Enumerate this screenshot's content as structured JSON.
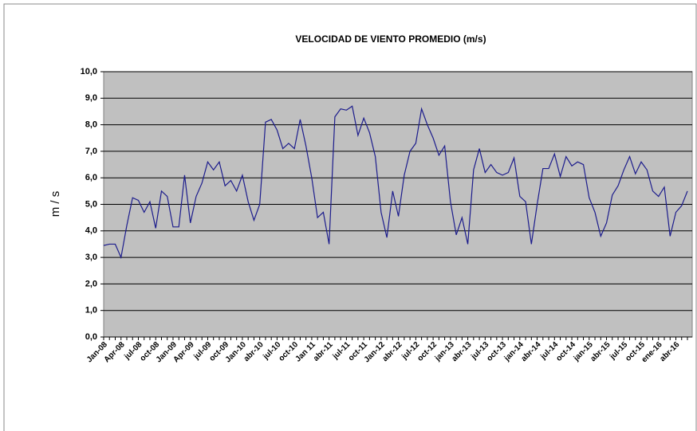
{
  "chart_data": {
    "type": "line",
    "title": "VELOCIDAD  DE VIENTO  PROMEDIO (m/s)",
    "y_label": "m / s",
    "categories": [
      "Jan-08",
      null,
      null,
      "Apr-08",
      null,
      null,
      "jul-08",
      null,
      null,
      "oct-08",
      null,
      null,
      "Jan-09",
      null,
      null,
      "Apr-09",
      null,
      null,
      "jul-09",
      null,
      null,
      "oct-09",
      null,
      null,
      "Jan-10",
      null,
      null,
      "abr-10",
      null,
      null,
      "jul-10",
      null,
      null,
      "oct-10",
      null,
      null,
      "Jan 11",
      null,
      null,
      "abr-11",
      null,
      null,
      "jul-11",
      null,
      null,
      "oct-11",
      null,
      null,
      "Jan-12",
      null,
      null,
      "abr-12",
      null,
      null,
      "jul-12",
      null,
      null,
      "oct-12",
      null,
      null,
      "jan-13",
      null,
      null,
      "abr-13",
      null,
      null,
      "jul-13",
      null,
      null,
      "oct-13",
      null,
      null,
      "jan-14",
      null,
      null,
      "abr-14",
      null,
      null,
      "jul-14",
      null,
      null,
      "oct-14",
      null,
      null,
      "jan-15",
      null,
      null,
      "abr-15",
      null,
      null,
      "jul-15",
      null,
      null,
      "oct-15",
      null,
      null,
      "ene-16",
      null,
      null,
      "abr-16",
      null,
      null
    ],
    "series": [
      {
        "name": "m / s",
        "color": "#1c1c8c",
        "values": [
          3.45,
          3.5,
          3.5,
          3.0,
          4.2,
          5.25,
          5.15,
          4.7,
          5.1,
          4.1,
          5.5,
          5.3,
          4.15,
          4.15,
          6.1,
          4.3,
          5.3,
          5.8,
          6.6,
          6.3,
          6.6,
          5.7,
          5.9,
          5.5,
          6.1,
          5.1,
          4.4,
          5.0,
          8.1,
          8.2,
          7.8,
          7.1,
          7.3,
          7.1,
          8.2,
          7.2,
          6.0,
          4.5,
          4.7,
          3.5,
          8.3,
          8.6,
          8.55,
          8.7,
          7.6,
          8.25,
          7.7,
          6.8,
          4.7,
          3.75,
          5.5,
          4.55,
          6.1,
          7.0,
          7.3,
          8.6,
          8.0,
          7.5,
          6.85,
          7.2,
          5.1,
          3.85,
          4.5,
          3.5,
          6.3,
          7.1,
          6.2,
          6.5,
          6.2,
          6.1,
          6.2,
          6.75,
          5.3,
          5.1,
          3.5,
          5.0,
          6.35,
          6.35,
          6.9,
          6.05,
          6.8,
          6.45,
          6.6,
          6.5,
          5.25,
          4.7,
          3.8,
          4.3,
          5.35,
          5.7,
          6.3,
          6.8,
          6.15,
          6.6,
          6.3,
          5.5,
          5.3,
          5.65,
          3.8,
          4.7,
          4.95,
          5.5
        ]
      }
    ],
    "ylim": [
      0,
      10
    ],
    "yticks": [
      {
        "value": 0,
        "label": "0,0"
      },
      {
        "value": 1,
        "label": "1,0"
      },
      {
        "value": 2,
        "label": "2,0"
      },
      {
        "value": 3,
        "label": "3,0"
      },
      {
        "value": 4,
        "label": "4,0"
      },
      {
        "value": 5,
        "label": "5,0"
      },
      {
        "value": 6,
        "label": "6,0"
      },
      {
        "value": 7,
        "label": "7,0"
      },
      {
        "value": 8,
        "label": "8,0"
      },
      {
        "value": 9,
        "label": "9,0"
      },
      {
        "value": 10,
        "label": "10,0"
      }
    ],
    "grid": true,
    "plot_background": "#c0c0c0"
  }
}
